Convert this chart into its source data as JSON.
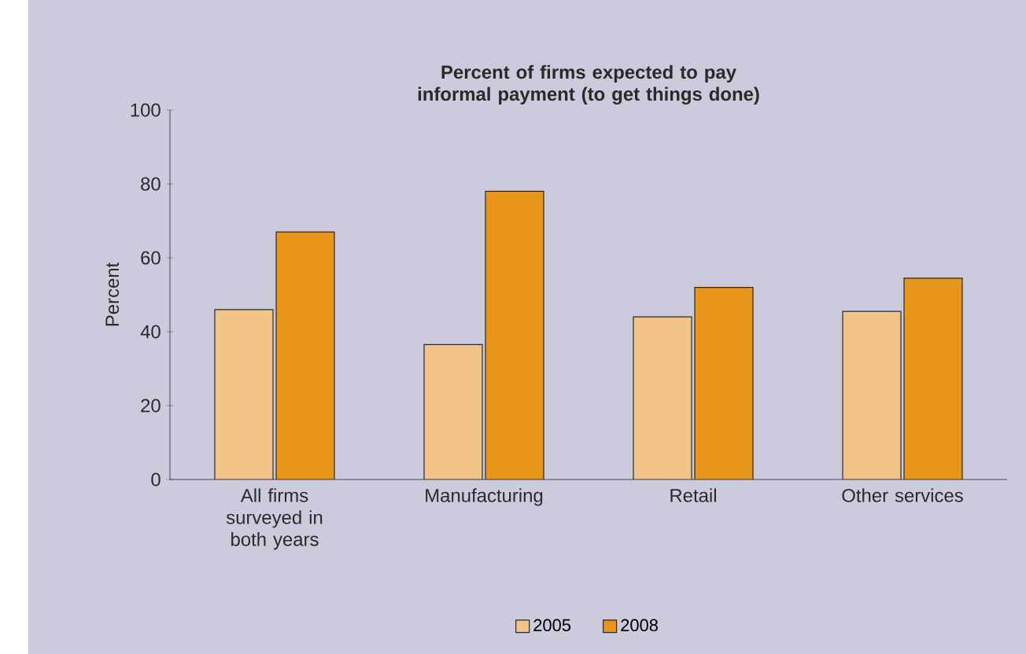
{
  "chart_data": {
    "type": "bar",
    "title": "Percent of firms expected to pay informal payment (to get things done)",
    "ylabel": "Percent",
    "categories": [
      "All firms surveyed in both years",
      "Manufacturing",
      "Retail",
      "Other services"
    ],
    "series": [
      {
        "name": "2005",
        "color": "#f3c489",
        "values": [
          46,
          36.5,
          44,
          45.5
        ]
      },
      {
        "name": "2008",
        "color": "#e8951b",
        "values": [
          67,
          78,
          52,
          54.5
        ]
      }
    ],
    "ylim": [
      0,
      100
    ],
    "yticks": [
      0,
      20,
      40,
      60,
      80,
      100
    ],
    "grid": false,
    "legend": "bottom"
  }
}
